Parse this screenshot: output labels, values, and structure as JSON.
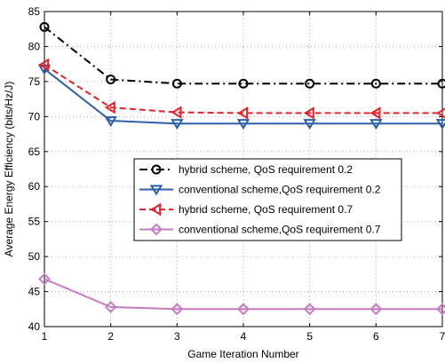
{
  "chart_data": {
    "type": "line",
    "xlabel": "Game Iteration Number",
    "ylabel": "Average Energy Efficiency (bits/Hz/J)",
    "x": [
      1,
      2,
      3,
      4,
      5,
      6,
      7
    ],
    "xlim": [
      1,
      7
    ],
    "ylim": [
      40,
      85
    ],
    "xticks": [
      "1",
      "2",
      "3",
      "4",
      "5",
      "6",
      "7"
    ],
    "yticks": [
      "40",
      "45",
      "50",
      "55",
      "60",
      "65",
      "70",
      "75",
      "80",
      "85"
    ],
    "grid": true,
    "legend_position": "center-right",
    "series": [
      {
        "name": "hybrid scheme, QoS requirement 0.2",
        "values": [
          82.8,
          75.3,
          74.7,
          74.7,
          74.7,
          74.7,
          74.7
        ],
        "color": "#000000",
        "line_style": "dash-dot",
        "marker": "circle"
      },
      {
        "name": "conventional scheme,QoS requirement 0.2",
        "values": [
          76.8,
          69.4,
          69.0,
          69.0,
          69.0,
          69.0,
          69.0
        ],
        "color": "#2e5fa8",
        "line_style": "solid",
        "marker": "triangle-down"
      },
      {
        "name": "hybrid scheme, QoS requirement 0.7",
        "values": [
          77.4,
          71.3,
          70.6,
          70.5,
          70.5,
          70.5,
          70.5
        ],
        "color": "#e8202a",
        "line_style": "dashed",
        "marker": "triangle-left"
      },
      {
        "name": "conventional scheme,QoS requirement 0.7",
        "values": [
          46.8,
          42.8,
          42.5,
          42.5,
          42.5,
          42.5,
          42.5
        ],
        "color": "#c77bc0",
        "line_style": "solid",
        "marker": "diamond"
      }
    ]
  }
}
